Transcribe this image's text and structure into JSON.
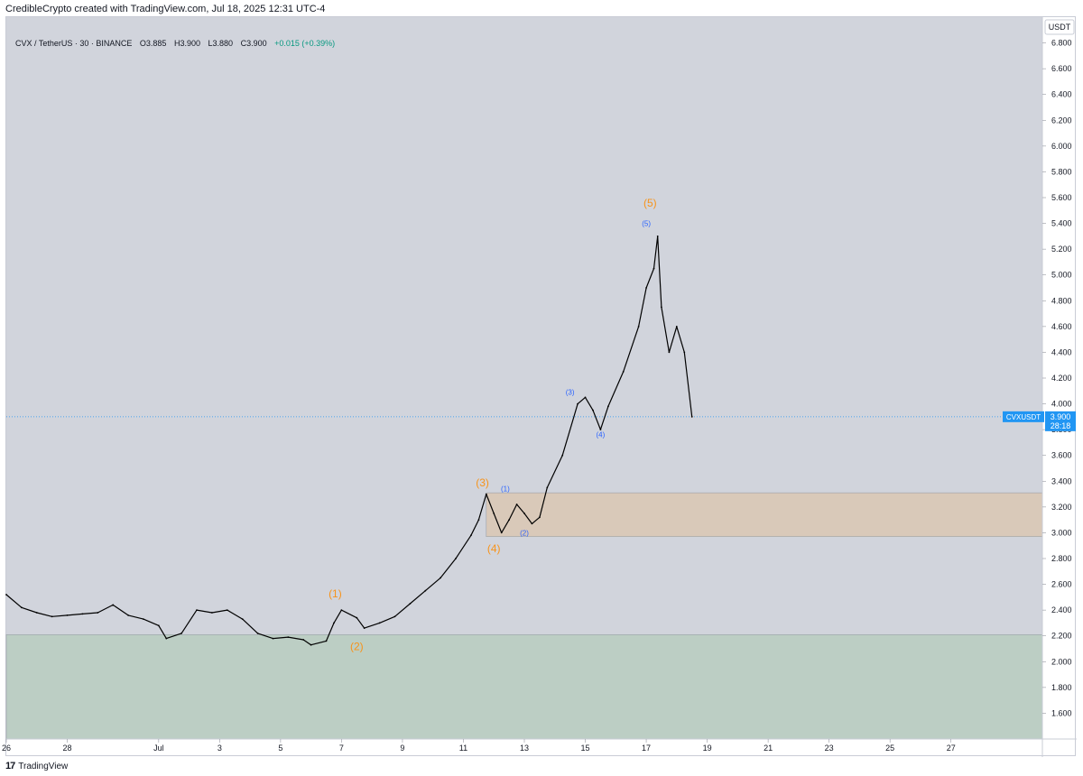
{
  "header": {
    "credit": "CredibleCrypto created with TradingView.com, Jul 18, 2025 12:31 UTC-4"
  },
  "legend": {
    "symbol": "CVX / TetherUS · 30 · BINANCE",
    "open_label": "O",
    "open": "3.885",
    "high_label": "H",
    "high": "3.900",
    "low_label": "L",
    "low": "3.880",
    "close_label": "C",
    "close": "3.900",
    "change": "+0.015 (+0.39%)"
  },
  "price_scale": {
    "currency": "USDT",
    "tag_symbol": "CVXUSDT",
    "tag_price": "3.900",
    "tag_countdown": "28:18"
  },
  "footer": {
    "brand": "TradingView"
  },
  "colors": {
    "background": "#d1d4dc",
    "line": "#000000",
    "green_zone": "#bccec4",
    "orange_zone": "#d9c9b9",
    "wave_major": "#f7931a",
    "wave_minor": "#2962ff",
    "price_tag": "#2196f3"
  },
  "chart_data": {
    "type": "line",
    "title": "CVX / TetherUS · 30 · BINANCE",
    "x_axis": {
      "unit": "day",
      "range": [
        "2025-06-26",
        "2025-07-30"
      ],
      "ticks": [
        {
          "label": "26",
          "date": "2025-06-26"
        },
        {
          "label": "28",
          "date": "2025-06-28"
        },
        {
          "label": "Jul",
          "date": "2025-07-01"
        },
        {
          "label": "3",
          "date": "2025-07-03"
        },
        {
          "label": "5",
          "date": "2025-07-05"
        },
        {
          "label": "7",
          "date": "2025-07-07"
        },
        {
          "label": "9",
          "date": "2025-07-09"
        },
        {
          "label": "11",
          "date": "2025-07-11"
        },
        {
          "label": "13",
          "date": "2025-07-13"
        },
        {
          "label": "15",
          "date": "2025-07-15"
        },
        {
          "label": "17",
          "date": "2025-07-17"
        },
        {
          "label": "19",
          "date": "2025-07-19"
        },
        {
          "label": "21",
          "date": "2025-07-21"
        },
        {
          "label": "23",
          "date": "2025-07-23"
        },
        {
          "label": "25",
          "date": "2025-07-25"
        },
        {
          "label": "27",
          "date": "2025-07-27"
        }
      ]
    },
    "y_axis": {
      "range": [
        1.4,
        7.0
      ],
      "ticks": [
        "6.800",
        "6.600",
        "6.400",
        "6.200",
        "6.000",
        "5.800",
        "5.600",
        "5.400",
        "5.200",
        "5.000",
        "4.800",
        "4.600",
        "4.400",
        "4.200",
        "4.000",
        "3.800",
        "3.600",
        "3.400",
        "3.200",
        "3.000",
        "2.800",
        "2.600",
        "2.400",
        "2.200",
        "2.000",
        "1.800",
        "1.600"
      ]
    },
    "grid": false,
    "series": [
      {
        "points": [
          [
            "2025-06-26T00:00",
            2.52
          ],
          [
            "2025-06-26T12:00",
            2.42
          ],
          [
            "2025-06-27T00:00",
            2.38
          ],
          [
            "2025-06-27T12:00",
            2.35
          ],
          [
            "2025-06-28T00:00",
            2.36
          ],
          [
            "2025-06-28T12:00",
            2.37
          ],
          [
            "2025-06-29T00:00",
            2.38
          ],
          [
            "2025-06-29T12:00",
            2.44
          ],
          [
            "2025-06-30T00:00",
            2.36
          ],
          [
            "2025-06-30T12:00",
            2.33
          ],
          [
            "2025-07-01T00:00",
            2.28
          ],
          [
            "2025-07-01T06:00",
            2.18
          ],
          [
            "2025-07-01T18:00",
            2.22
          ],
          [
            "2025-07-02T06:00",
            2.4
          ],
          [
            "2025-07-02T18:00",
            2.38
          ],
          [
            "2025-07-03T06:00",
            2.4
          ],
          [
            "2025-07-03T18:00",
            2.33
          ],
          [
            "2025-07-04T06:00",
            2.22
          ],
          [
            "2025-07-04T18:00",
            2.18
          ],
          [
            "2025-07-05T06:00",
            2.19
          ],
          [
            "2025-07-05T18:00",
            2.17
          ],
          [
            "2025-07-06T00:00",
            2.13
          ],
          [
            "2025-07-06T12:00",
            2.16
          ],
          [
            "2025-07-06T18:00",
            2.3
          ],
          [
            "2025-07-07T00:00",
            2.4
          ],
          [
            "2025-07-07T12:00",
            2.34
          ],
          [
            "2025-07-07T18:00",
            2.26
          ],
          [
            "2025-07-08T06:00",
            2.3
          ],
          [
            "2025-07-08T18:00",
            2.35
          ],
          [
            "2025-07-09T06:00",
            2.45
          ],
          [
            "2025-07-09T18:00",
            2.55
          ],
          [
            "2025-07-10T06:00",
            2.65
          ],
          [
            "2025-07-10T18:00",
            2.8
          ],
          [
            "2025-07-11T06:00",
            2.98
          ],
          [
            "2025-07-11T12:00",
            3.1
          ],
          [
            "2025-07-11T18:00",
            3.3
          ],
          [
            "2025-07-12T00:00",
            3.15
          ],
          [
            "2025-07-12T06:00",
            3.0
          ],
          [
            "2025-07-12T12:00",
            3.1
          ],
          [
            "2025-07-12T18:00",
            3.22
          ],
          [
            "2025-07-13T00:00",
            3.15
          ],
          [
            "2025-07-13T06:00",
            3.07
          ],
          [
            "2025-07-13T12:00",
            3.12
          ],
          [
            "2025-07-13T18:00",
            3.35
          ],
          [
            "2025-07-14T06:00",
            3.6
          ],
          [
            "2025-07-14T18:00",
            4.0
          ],
          [
            "2025-07-15T00:00",
            4.05
          ],
          [
            "2025-07-15T06:00",
            3.95
          ],
          [
            "2025-07-15T12:00",
            3.8
          ],
          [
            "2025-07-15T18:00",
            3.98
          ],
          [
            "2025-07-16T06:00",
            4.25
          ],
          [
            "2025-07-16T18:00",
            4.6
          ],
          [
            "2025-07-17T00:00",
            4.9
          ],
          [
            "2025-07-17T06:00",
            5.05
          ],
          [
            "2025-07-17T09:00",
            5.3
          ],
          [
            "2025-07-17T12:00",
            4.75
          ],
          [
            "2025-07-17T18:00",
            4.4
          ],
          [
            "2025-07-18T00:00",
            4.6
          ],
          [
            "2025-07-18T06:00",
            4.4
          ],
          [
            "2025-07-18T12:00",
            3.9
          ]
        ]
      }
    ],
    "zones": [
      {
        "color": "orange",
        "from": "2025-07-11T18:00",
        "y_low": 2.97,
        "y_high": 3.31
      },
      {
        "color": "green",
        "from": "2025-06-26T00:00",
        "y_low": 1.4,
        "y_high": 2.21
      }
    ],
    "last_price_line": 3.9,
    "wave_labels": [
      {
        "text": "(1)",
        "degree": "major",
        "date": "2025-07-06T19:00",
        "price": 2.5
      },
      {
        "text": "(2)",
        "degree": "major",
        "date": "2025-07-07T12:00",
        "price": 2.09
      },
      {
        "text": "(3)",
        "degree": "major",
        "date": "2025-07-11T15:00",
        "price": 3.36
      },
      {
        "text": "(4)",
        "degree": "major",
        "date": "2025-07-12T00:00",
        "price": 2.85
      },
      {
        "text": "(5)",
        "degree": "major",
        "date": "2025-07-17T03:00",
        "price": 5.53
      },
      {
        "text": "(1)",
        "degree": "minor",
        "date": "2025-07-12T09:00",
        "price": 3.32
      },
      {
        "text": "(2)",
        "degree": "minor",
        "date": "2025-07-13T00:00",
        "price": 2.98
      },
      {
        "text": "(3)",
        "degree": "minor",
        "date": "2025-07-14T12:00",
        "price": 4.07
      },
      {
        "text": "(4)",
        "degree": "minor",
        "date": "2025-07-15T12:00",
        "price": 3.74
      },
      {
        "text": "(5)",
        "degree": "minor",
        "date": "2025-07-17T00:00",
        "price": 5.38
      }
    ]
  }
}
